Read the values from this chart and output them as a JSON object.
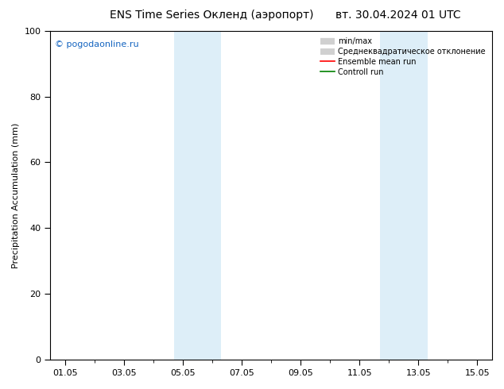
{
  "title_left": "ENS Time Series Окленд (аэропорт)",
  "title_right": "вт. 30.04.2024 01 UTC",
  "ylabel": "Precipitation Accumulation (mm)",
  "watermark": "© pogodaonline.ru",
  "ylim": [
    0,
    100
  ],
  "xlim": [
    -0.5,
    14.5
  ],
  "xtick_labels": [
    "01.05",
    "03.05",
    "05.05",
    "07.05",
    "09.05",
    "11.05",
    "13.05",
    "15.05"
  ],
  "xtick_positions": [
    0,
    2,
    4,
    6,
    8,
    10,
    12,
    14
  ],
  "shaded_regions": [
    {
      "x_start": 3.7,
      "x_end": 4.5,
      "color": "#ddeef8",
      "alpha": 1.0
    },
    {
      "x_start": 4.5,
      "x_end": 5.3,
      "color": "#ddeef8",
      "alpha": 1.0
    },
    {
      "x_start": 10.7,
      "x_end": 11.5,
      "color": "#ddeef8",
      "alpha": 1.0
    },
    {
      "x_start": 11.5,
      "x_end": 12.3,
      "color": "#ddeef8",
      "alpha": 1.0
    }
  ],
  "legend_items": [
    {
      "label": "min/max",
      "color": "#d0d0d0",
      "type": "line_patch"
    },
    {
      "label": "Среднеквадратическое отклонение",
      "color": "#d0d0d0",
      "type": "patch"
    },
    {
      "label": "Ensemble mean run",
      "color": "#ff0000",
      "type": "line"
    },
    {
      "label": "Controll run",
      "color": "#008000",
      "type": "line"
    }
  ],
  "ytick_positions": [
    0,
    20,
    40,
    60,
    80,
    100
  ],
  "background_color": "#ffffff",
  "plot_bg_color": "#ffffff",
  "title_fontsize": 10,
  "ylabel_fontsize": 8,
  "tick_fontsize": 8,
  "legend_fontsize": 7,
  "watermark_fontsize": 8
}
